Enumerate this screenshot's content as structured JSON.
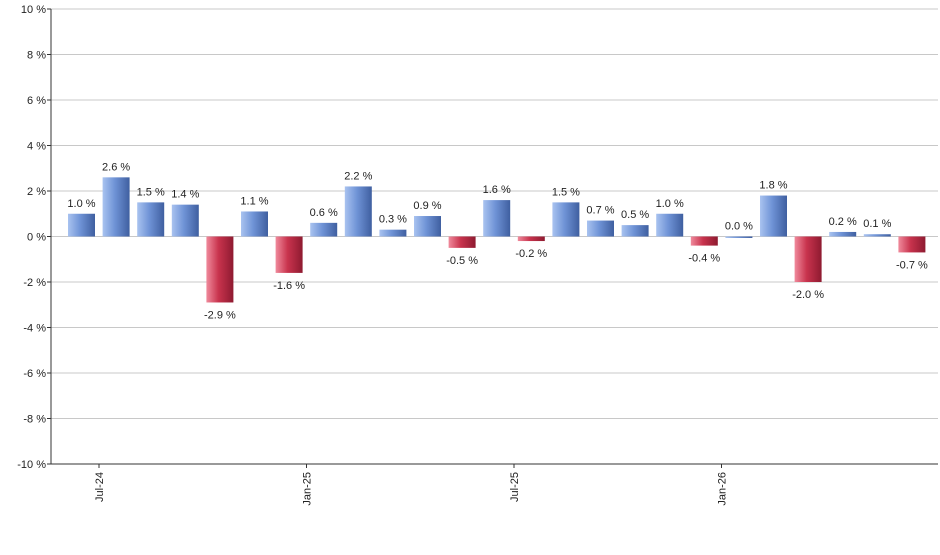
{
  "chart_data": {
    "type": "bar",
    "title": "",
    "xlabel": "",
    "ylabel": "",
    "ylim": [
      -10,
      10
    ],
    "yticks": [
      -10,
      -8,
      -6,
      -4,
      -2,
      0,
      2,
      4,
      6,
      8,
      10
    ],
    "ytick_labels": [
      "-10 %",
      "-8 %",
      "-6 %",
      "-4 %",
      "-2 %",
      "0 %",
      "2 %",
      "4 %",
      "6 %",
      "8 %",
      "10 %"
    ],
    "grid": true,
    "x_tick_labels": [
      {
        "label": "Jul-24",
        "after_bar": 1
      },
      {
        "label": "Jan-25",
        "after_bar": 7
      },
      {
        "label": "Jul-25",
        "after_bar": 13
      },
      {
        "label": "Jan-26",
        "after_bar": 19
      }
    ],
    "values": [
      1.0,
      2.6,
      1.5,
      1.4,
      -2.9,
      1.1,
      -1.6,
      0.6,
      2.2,
      0.3,
      0.9,
      -0.5,
      1.6,
      -0.2,
      1.5,
      0.7,
      0.5,
      1.0,
      -0.4,
      0.0,
      1.8,
      -2.0,
      0.2,
      0.1,
      -0.7
    ],
    "value_labels": [
      "1.0 %",
      "2.6 %",
      "1.5 %",
      "1.4 %",
      "-2.9 %",
      "1.1 %",
      "-1.6 %",
      "0.6 %",
      "2.2 %",
      "0.3 %",
      "0.9 %",
      "-0.5 %",
      "1.6 %",
      "-0.2 %",
      "1.5 %",
      "0.7 %",
      "0.5 %",
      "1.0 %",
      "-0.4 %",
      "0.0 %",
      "1.8 %",
      "-2.0 %",
      "0.2 %",
      "0.1 %",
      "-0.7 %"
    ],
    "colors": {
      "positive": "#6f93d6",
      "positive_light": "#a9c3f0",
      "positive_dark": "#3f5fa0",
      "negative": "#c8334d",
      "negative_light": "#f08a9c",
      "negative_dark": "#8e1a30",
      "grid": "#c8c8c8",
      "axis": "#333333",
      "text": "#222222"
    }
  }
}
